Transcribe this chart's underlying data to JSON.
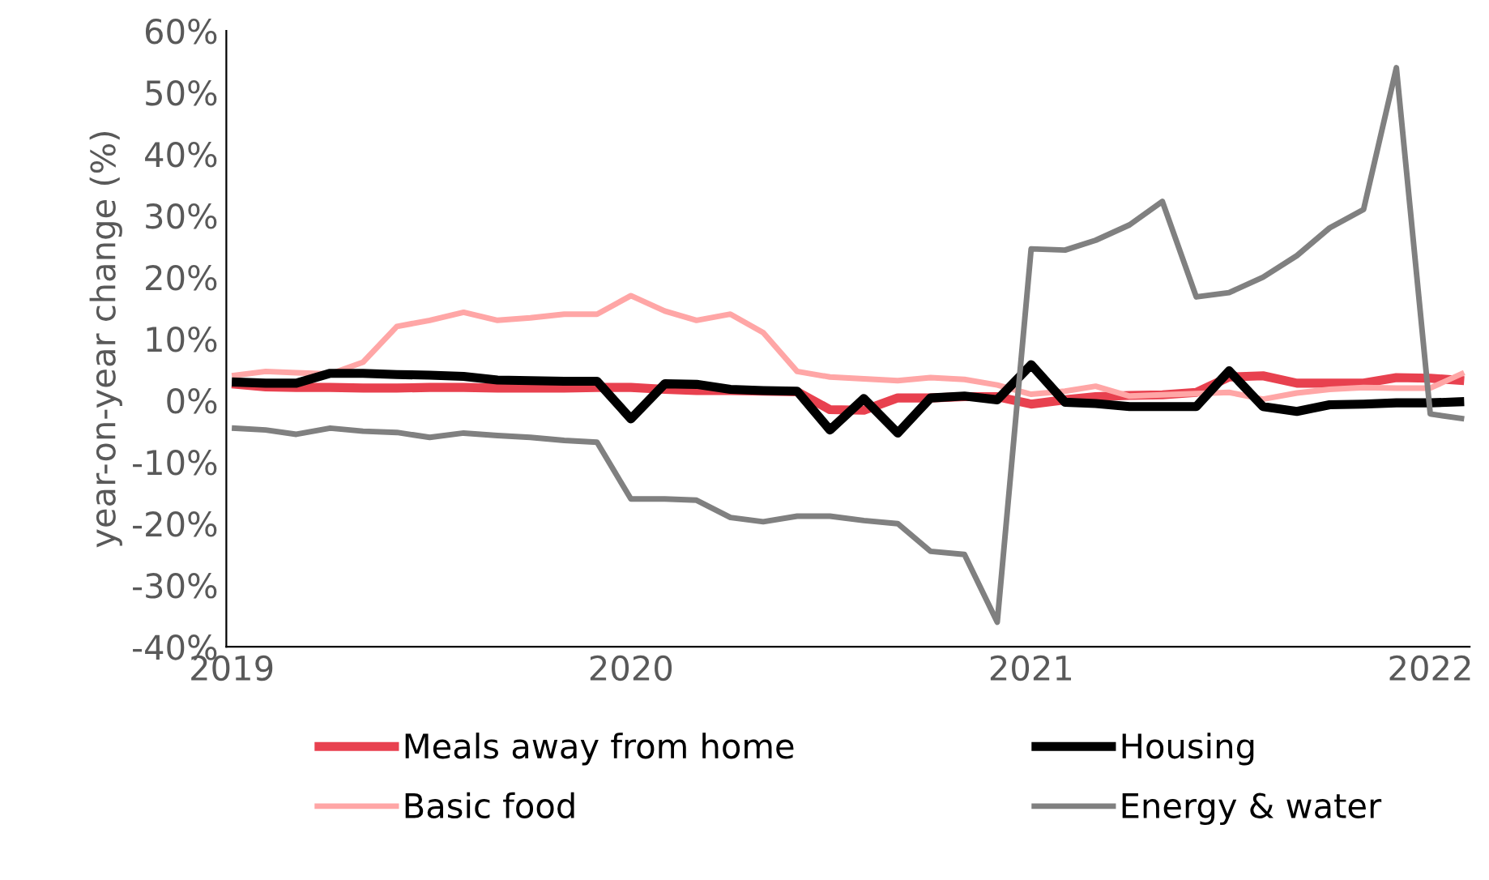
{
  "chart_data": {
    "type": "line",
    "ylabel": "year-on-year change (%)",
    "x": [
      "2019-01",
      "2019-02",
      "2019-03",
      "2019-04",
      "2019-05",
      "2019-06",
      "2019-07",
      "2019-08",
      "2019-09",
      "2019-10",
      "2019-11",
      "2019-12",
      "2020-01",
      "2020-02",
      "2020-03",
      "2020-04",
      "2020-05",
      "2020-06",
      "2020-07",
      "2020-08",
      "2020-09",
      "2020-10",
      "2020-11",
      "2020-12",
      "2021-01",
      "2021-02",
      "2021-03",
      "2021-04",
      "2021-05",
      "2021-06",
      "2021-07",
      "2021-08",
      "2021-09",
      "2021-10",
      "2021-11",
      "2021-12",
      "2022-01",
      "2022-02"
    ],
    "series": [
      {
        "name": "Meals away from home",
        "color": "#e8414f",
        "values": [
          2.7,
          2.2,
          2.1,
          2.1,
          2.0,
          2.0,
          2.1,
          2.1,
          2.0,
          2.0,
          2.0,
          2.1,
          2.1,
          1.8,
          1.6,
          1.6,
          1.5,
          1.4,
          -1.5,
          -1.6,
          0.4,
          0.4,
          0.6,
          0.6,
          -0.6,
          0.1,
          0.6,
          0.8,
          0.9,
          1.3,
          3.8,
          4.0,
          2.8,
          2.8,
          2.8,
          3.7,
          3.6,
          3.2
        ]
      },
      {
        "name": "Basic food",
        "color": "#ffa6a6",
        "values": [
          4.0,
          4.7,
          4.5,
          4.3,
          6.2,
          12.0,
          13.0,
          14.3,
          13.0,
          13.4,
          14.0,
          14.0,
          17.0,
          14.5,
          13.0,
          14.0,
          11.0,
          4.7,
          3.8,
          3.5,
          3.2,
          3.7,
          3.4,
          2.5,
          1.0,
          1.5,
          2.3,
          0.7,
          0.9,
          1.1,
          1.3,
          0.2,
          1.2,
          1.8,
          2.1,
          2.0,
          2.0,
          4.5
        ]
      },
      {
        "name": "Housing",
        "color": "#000000",
        "values": [
          3.0,
          2.8,
          2.8,
          4.4,
          4.4,
          4.2,
          4.1,
          3.9,
          3.3,
          3.2,
          3.1,
          3.1,
          -3.0,
          2.7,
          2.6,
          1.8,
          1.6,
          1.5,
          -4.8,
          0.3,
          -5.3,
          0.4,
          0.7,
          0.1,
          5.8,
          -0.3,
          -0.5,
          -1.0,
          -1.0,
          -1.0,
          4.8,
          -1.0,
          -1.8,
          -0.7,
          -0.6,
          -0.4,
          -0.4,
          -0.2
        ]
      },
      {
        "name": "Energy & water",
        "color": "#808080",
        "values": [
          -4.5,
          -4.8,
          -5.5,
          -4.5,
          -5.0,
          -5.2,
          -6.0,
          -5.3,
          -5.7,
          -6.0,
          -6.5,
          -6.8,
          -16.0,
          -16.0,
          -16.2,
          -19.0,
          -19.7,
          -18.8,
          -18.8,
          -19.5,
          -20.0,
          -24.5,
          -25.0,
          -36.0,
          24.6,
          24.4,
          26.0,
          28.5,
          32.3,
          16.8,
          17.5,
          20.0,
          23.5,
          28.0,
          31.0,
          54.0,
          -2.2,
          -3.0
        ]
      }
    ],
    "xlim": [
      "2018-12-27",
      "2022-02-06"
    ],
    "xticks": [
      {
        "value": "2019-01-01",
        "label": "2019"
      },
      {
        "value": "2020-01-01",
        "label": "2020"
      },
      {
        "value": "2021-01-01",
        "label": "2021"
      },
      {
        "value": "2022-01-01",
        "label": "2022"
      }
    ],
    "ylim": [
      -40,
      60
    ],
    "yticks": [
      {
        "value": -40,
        "label": "-40%"
      },
      {
        "value": -30,
        "label": "-30%"
      },
      {
        "value": -20,
        "label": "-20%"
      },
      {
        "value": -10,
        "label": "-10%"
      },
      {
        "value": 0,
        "label": "0%"
      },
      {
        "value": 10,
        "label": "10%"
      },
      {
        "value": 20,
        "label": "20%"
      },
      {
        "value": 30,
        "label": "30%"
      },
      {
        "value": 40,
        "label": "40%"
      },
      {
        "value": 50,
        "label": "50%"
      },
      {
        "value": 60,
        "label": "60%"
      }
    ],
    "grid": false,
    "legend": "bottom",
    "line_style": "solid"
  }
}
